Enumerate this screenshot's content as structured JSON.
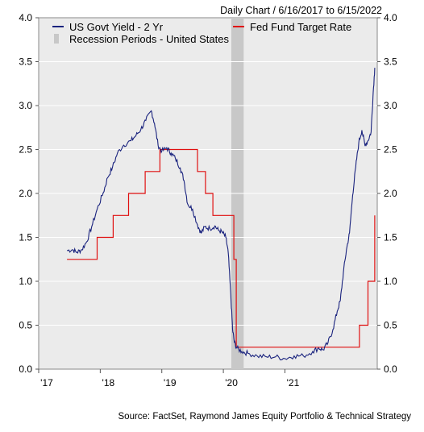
{
  "chart_data": {
    "type": "line",
    "subtitle": "Daily Chart / 6/16/2017 to 6/15/2022",
    "source": "Source: FactSet, Raymond James Equity Portfolio & Technical Strategy",
    "y_ticks": [
      "0.0",
      "0.5",
      "1.0",
      "1.5",
      "2.0",
      "2.5",
      "3.0",
      "3.5",
      "4.0"
    ],
    "ylim": [
      0,
      4
    ],
    "x_ticks": [
      {
        "label": "'17",
        "x": 2017.0
      },
      {
        "label": "'18",
        "x": 2018.0
      },
      {
        "label": "'19",
        "x": 2019.0
      },
      {
        "label": "'20",
        "x": 2020.0
      },
      {
        "label": "'21",
        "x": 2021.0
      }
    ],
    "xlim": [
      2017.0,
      2022.5
    ],
    "legend": {
      "placement": "top",
      "items": [
        {
          "name": "US Govt Yield - 2 Yr",
          "color": "#1a237e"
        },
        {
          "name": "Recession Periods - United States",
          "color": "#c8c8c8"
        },
        {
          "name": "Fed Fund Target Rate",
          "color": "#e01010"
        }
      ]
    },
    "recession": {
      "start": 2020.13,
      "end": 2020.33
    },
    "series": [
      {
        "name": "US Govt Yield - 2 Yr",
        "color": "#1a237e",
        "points": [
          [
            2017.46,
            1.35
          ],
          [
            2017.55,
            1.36
          ],
          [
            2017.62,
            1.33
          ],
          [
            2017.7,
            1.36
          ],
          [
            2017.78,
            1.45
          ],
          [
            2017.86,
            1.62
          ],
          [
            2017.95,
            1.82
          ],
          [
            2018.05,
            2.01
          ],
          [
            2018.12,
            2.18
          ],
          [
            2018.2,
            2.3
          ],
          [
            2018.28,
            2.46
          ],
          [
            2018.38,
            2.55
          ],
          [
            2018.5,
            2.6
          ],
          [
            2018.58,
            2.66
          ],
          [
            2018.66,
            2.73
          ],
          [
            2018.74,
            2.83
          ],
          [
            2018.83,
            2.94
          ],
          [
            2018.88,
            2.8
          ],
          [
            2018.94,
            2.55
          ],
          [
            2019.0,
            2.48
          ],
          [
            2019.08,
            2.52
          ],
          [
            2019.15,
            2.46
          ],
          [
            2019.22,
            2.4
          ],
          [
            2019.3,
            2.29
          ],
          [
            2019.36,
            2.15
          ],
          [
            2019.42,
            1.88
          ],
          [
            2019.5,
            1.82
          ],
          [
            2019.58,
            1.64
          ],
          [
            2019.64,
            1.55
          ],
          [
            2019.7,
            1.62
          ],
          [
            2019.78,
            1.6
          ],
          [
            2019.86,
            1.63
          ],
          [
            2019.92,
            1.58
          ],
          [
            2019.98,
            1.56
          ],
          [
            2020.04,
            1.5
          ],
          [
            2020.08,
            1.32
          ],
          [
            2020.12,
            0.85
          ],
          [
            2020.15,
            0.45
          ],
          [
            2020.18,
            0.3
          ],
          [
            2020.22,
            0.24
          ],
          [
            2020.3,
            0.2
          ],
          [
            2020.4,
            0.18
          ],
          [
            2020.55,
            0.15
          ],
          [
            2020.7,
            0.14
          ],
          [
            2020.85,
            0.14
          ],
          [
            2021.0,
            0.12
          ],
          [
            2021.15,
            0.15
          ],
          [
            2021.3,
            0.15
          ],
          [
            2021.45,
            0.2
          ],
          [
            2021.55,
            0.24
          ],
          [
            2021.62,
            0.22
          ],
          [
            2021.7,
            0.3
          ],
          [
            2021.78,
            0.45
          ],
          [
            2021.85,
            0.66
          ],
          [
            2021.9,
            0.78
          ],
          [
            2021.95,
            1.1
          ],
          [
            2022.0,
            1.36
          ],
          [
            2022.05,
            1.55
          ],
          [
            2022.1,
            1.98
          ],
          [
            2022.15,
            2.3
          ],
          [
            2022.2,
            2.58
          ],
          [
            2022.25,
            2.72
          ],
          [
            2022.3,
            2.55
          ],
          [
            2022.35,
            2.6
          ],
          [
            2022.4,
            2.7
          ],
          [
            2022.43,
            3.1
          ],
          [
            2022.46,
            3.43
          ]
        ]
      },
      {
        "name": "Fed Fund Target Rate",
        "color": "#e01010",
        "points": [
          [
            2017.46,
            1.25
          ],
          [
            2017.95,
            1.25
          ],
          [
            2017.95,
            1.5
          ],
          [
            2018.21,
            1.5
          ],
          [
            2018.21,
            1.75
          ],
          [
            2018.46,
            1.75
          ],
          [
            2018.46,
            2.0
          ],
          [
            2018.73,
            2.0
          ],
          [
            2018.73,
            2.25
          ],
          [
            2018.97,
            2.25
          ],
          [
            2018.97,
            2.5
          ],
          [
            2019.58,
            2.5
          ],
          [
            2019.58,
            2.25
          ],
          [
            2019.71,
            2.25
          ],
          [
            2019.71,
            2.0
          ],
          [
            2019.83,
            2.0
          ],
          [
            2019.83,
            1.75
          ],
          [
            2020.17,
            1.75
          ],
          [
            2020.17,
            1.25
          ],
          [
            2020.21,
            1.25
          ],
          [
            2020.21,
            0.25
          ],
          [
            2022.21,
            0.25
          ],
          [
            2022.21,
            0.5
          ],
          [
            2022.35,
            0.5
          ],
          [
            2022.35,
            1.0
          ],
          [
            2022.46,
            1.0
          ],
          [
            2022.46,
            1.75
          ]
        ]
      }
    ]
  }
}
